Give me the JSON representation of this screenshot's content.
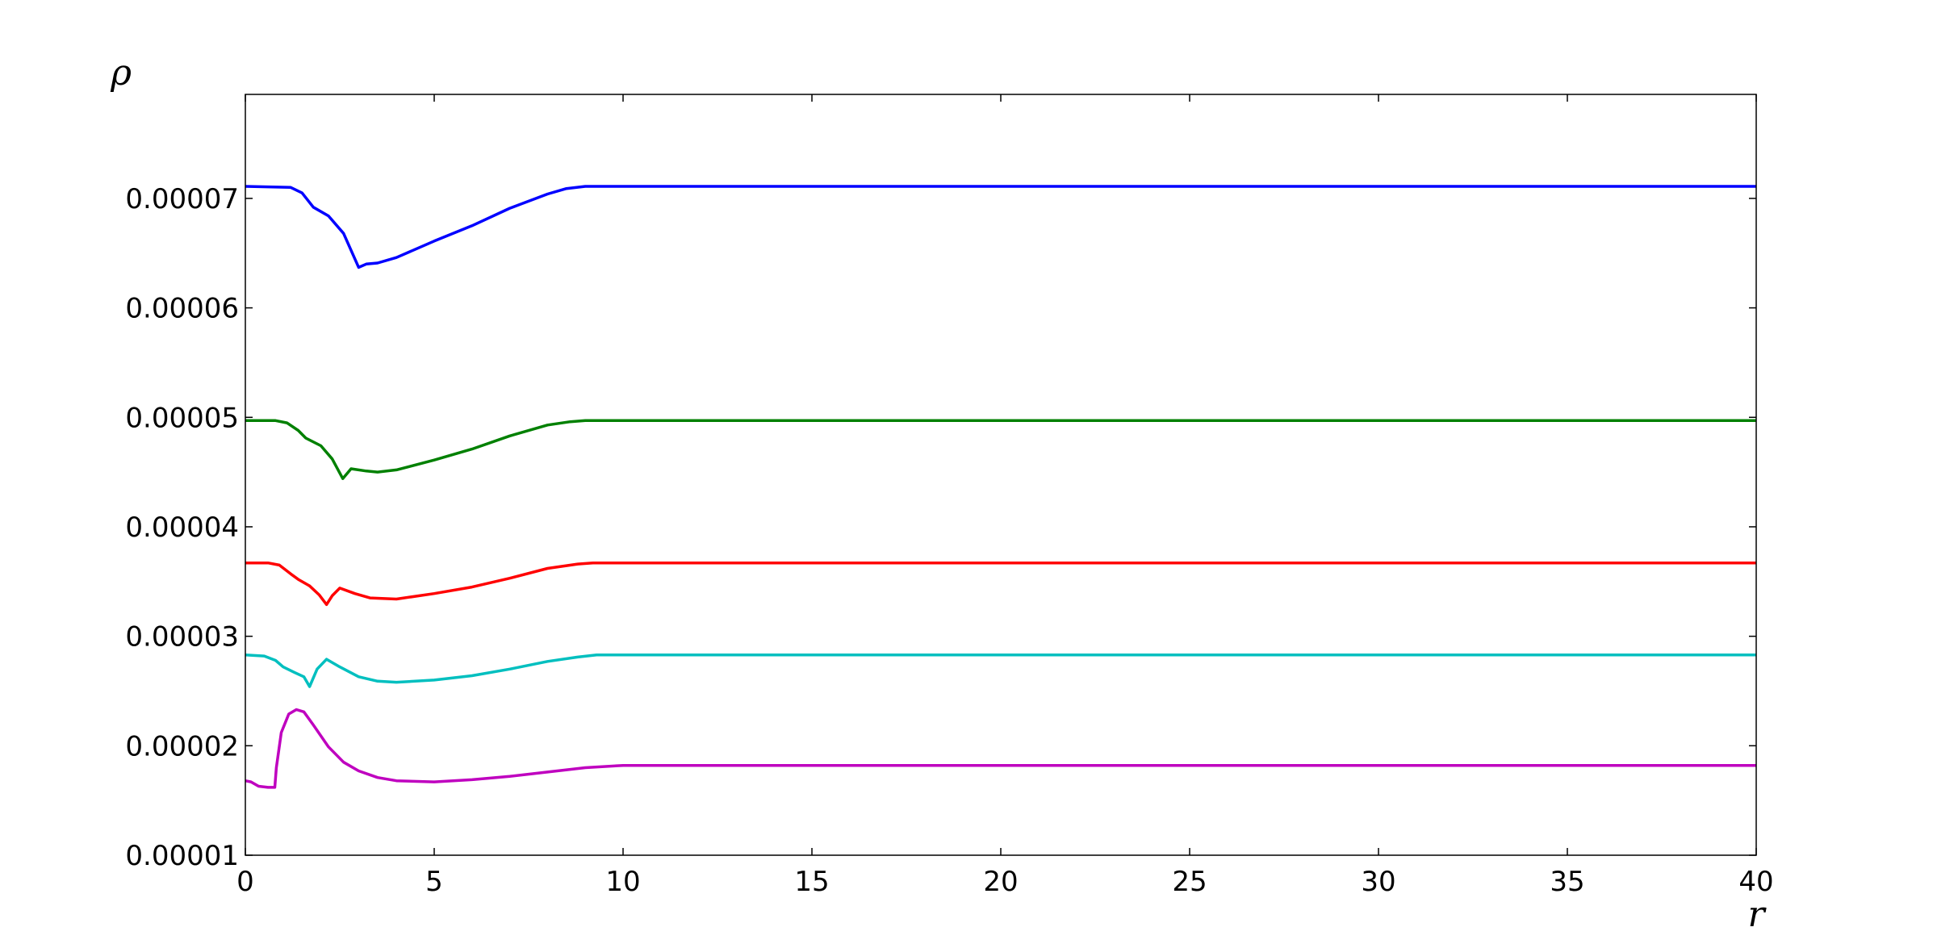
{
  "chart_data": {
    "type": "line",
    "title": "",
    "xlabel": "r",
    "ylabel": "ρ",
    "xlim": [
      0,
      40
    ],
    "ylim": [
      1e-05,
      7.95e-05
    ],
    "xticks": [
      0,
      5,
      10,
      15,
      20,
      25,
      30,
      35,
      40
    ],
    "xtick_labels": [
      "0",
      "5",
      "10",
      "15",
      "20",
      "25",
      "30",
      "35",
      "40"
    ],
    "yticks": [
      1e-05,
      2e-05,
      3e-05,
      4e-05,
      5e-05,
      6e-05,
      7e-05
    ],
    "ytick_labels": [
      "0.00001",
      "0.00002",
      "0.00003",
      "0.00004",
      "0.00005",
      "0.00006",
      "0.00007"
    ],
    "grid": false,
    "legend": false,
    "series": [
      {
        "color": "#0000ff",
        "points": [
          [
            0,
            7.11e-05
          ],
          [
            1.2,
            7.1e-05
          ],
          [
            1.5,
            7.05e-05
          ],
          [
            1.8,
            6.92e-05
          ],
          [
            2.2,
            6.84e-05
          ],
          [
            2.6,
            6.68e-05
          ],
          [
            3.0,
            6.37e-05
          ],
          [
            3.2,
            6.4e-05
          ],
          [
            3.5,
            6.41e-05
          ],
          [
            4.0,
            6.46e-05
          ],
          [
            5.0,
            6.61e-05
          ],
          [
            6.0,
            6.75e-05
          ],
          [
            7.0,
            6.91e-05
          ],
          [
            8.0,
            7.04e-05
          ],
          [
            8.5,
            7.09e-05
          ],
          [
            9.0,
            7.11e-05
          ],
          [
            40,
            7.11e-05
          ]
        ]
      },
      {
        "color": "#008000",
        "points": [
          [
            0,
            4.97e-05
          ],
          [
            0.8,
            4.97e-05
          ],
          [
            1.1,
            4.95e-05
          ],
          [
            1.4,
            4.88e-05
          ],
          [
            1.6,
            4.81e-05
          ],
          [
            2.0,
            4.74e-05
          ],
          [
            2.3,
            4.62e-05
          ],
          [
            2.58,
            4.44e-05
          ],
          [
            2.8,
            4.53e-05
          ],
          [
            3.2,
            4.51e-05
          ],
          [
            3.5,
            4.5e-05
          ],
          [
            4.0,
            4.52e-05
          ],
          [
            5.0,
            4.61e-05
          ],
          [
            6.0,
            4.71e-05
          ],
          [
            7.0,
            4.83e-05
          ],
          [
            8.0,
            4.93e-05
          ],
          [
            8.6,
            4.96e-05
          ],
          [
            9.0,
            4.97e-05
          ],
          [
            40,
            4.97e-05
          ]
        ]
      },
      {
        "color": "#ff0000",
        "points": [
          [
            0,
            3.67e-05
          ],
          [
            0.6,
            3.67e-05
          ],
          [
            0.9,
            3.65e-05
          ],
          [
            1.2,
            3.57e-05
          ],
          [
            1.4,
            3.52e-05
          ],
          [
            1.7,
            3.46e-05
          ],
          [
            1.95,
            3.38e-05
          ],
          [
            2.15,
            3.29e-05
          ],
          [
            2.3,
            3.37e-05
          ],
          [
            2.5,
            3.44e-05
          ],
          [
            2.9,
            3.39e-05
          ],
          [
            3.3,
            3.35e-05
          ],
          [
            4.0,
            3.34e-05
          ],
          [
            5.0,
            3.39e-05
          ],
          [
            6.0,
            3.45e-05
          ],
          [
            7.0,
            3.53e-05
          ],
          [
            8.0,
            3.62e-05
          ],
          [
            8.8,
            3.66e-05
          ],
          [
            9.2,
            3.67e-05
          ],
          [
            40,
            3.67e-05
          ]
        ]
      },
      {
        "color": "#00bfbf",
        "points": [
          [
            0,
            2.83e-05
          ],
          [
            0.5,
            2.82e-05
          ],
          [
            0.8,
            2.78e-05
          ],
          [
            1.0,
            2.72e-05
          ],
          [
            1.3,
            2.67e-05
          ],
          [
            1.55,
            2.63e-05
          ],
          [
            1.7,
            2.54e-05
          ],
          [
            1.9,
            2.7e-05
          ],
          [
            2.15,
            2.79e-05
          ],
          [
            2.5,
            2.72e-05
          ],
          [
            3.0,
            2.63e-05
          ],
          [
            3.5,
            2.59e-05
          ],
          [
            4.0,
            2.58e-05
          ],
          [
            5.0,
            2.6e-05
          ],
          [
            6.0,
            2.64e-05
          ],
          [
            7.0,
            2.7e-05
          ],
          [
            8.0,
            2.77e-05
          ],
          [
            8.8,
            2.81e-05
          ],
          [
            9.3,
            2.83e-05
          ],
          [
            40,
            2.83e-05
          ]
        ]
      },
      {
        "color": "#bf00bf",
        "points": [
          [
            0,
            1.68e-05
          ],
          [
            0.15,
            1.67e-05
          ],
          [
            0.35,
            1.63e-05
          ],
          [
            0.6,
            1.62e-05
          ],
          [
            0.78,
            1.62e-05
          ],
          [
            0.82,
            1.8e-05
          ],
          [
            0.95,
            2.12e-05
          ],
          [
            1.15,
            2.29e-05
          ],
          [
            1.35,
            2.33e-05
          ],
          [
            1.55,
            2.31e-05
          ],
          [
            1.8,
            2.19e-05
          ],
          [
            2.2,
            1.99e-05
          ],
          [
            2.6,
            1.85e-05
          ],
          [
            3.0,
            1.77e-05
          ],
          [
            3.5,
            1.71e-05
          ],
          [
            4.0,
            1.68e-05
          ],
          [
            5.0,
            1.67e-05
          ],
          [
            6.0,
            1.69e-05
          ],
          [
            7.0,
            1.72e-05
          ],
          [
            8.0,
            1.76e-05
          ],
          [
            9.0,
            1.8e-05
          ],
          [
            10.0,
            1.82e-05
          ],
          [
            40,
            1.82e-05
          ]
        ]
      }
    ]
  }
}
